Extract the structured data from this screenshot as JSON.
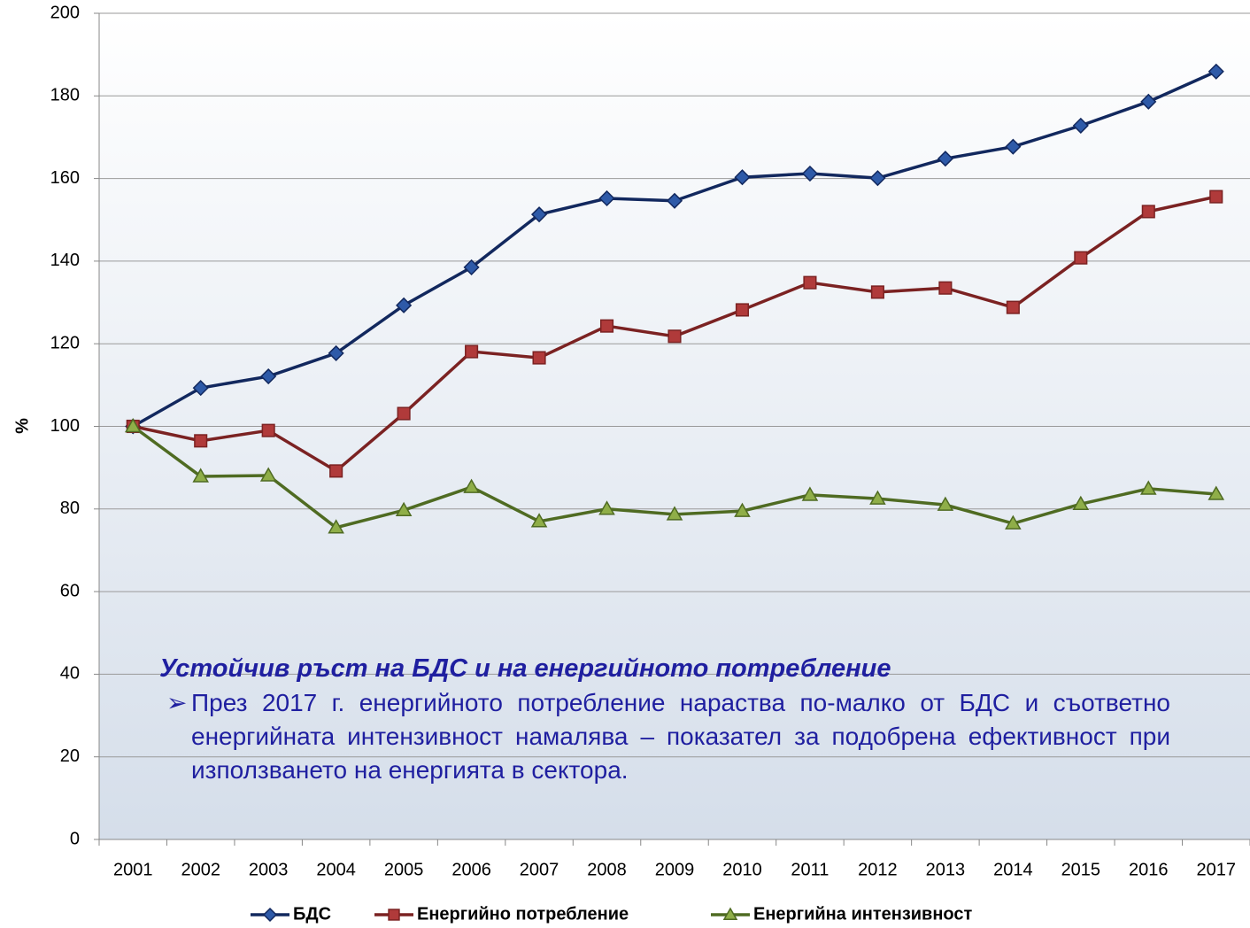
{
  "chart_data": {
    "type": "line",
    "ylabel": "%",
    "categories": [
      "2001",
      "2002",
      "2003",
      "2004",
      "2005",
      "2006",
      "2007",
      "2008",
      "2009",
      "2010",
      "2011",
      "2012",
      "2013",
      "2014",
      "2015",
      "2016",
      "2017"
    ],
    "series": [
      {
        "name": "БДС",
        "color": "#12285e",
        "marker": "diamond",
        "marker_color": "#2e5aa8",
        "values": [
          100,
          109.3,
          112.1,
          117.7,
          129.3,
          138.5,
          151.3,
          155.2,
          154.6,
          160.3,
          161.2,
          160.1,
          164.8,
          167.7,
          172.8,
          178.6,
          185.9
        ]
      },
      {
        "name": "Енергийно потребление",
        "color": "#7b2222",
        "marker": "square",
        "marker_color": "#b03a3a",
        "values": [
          100,
          96.5,
          99.0,
          89.2,
          103.1,
          118.1,
          116.6,
          124.3,
          121.8,
          128.2,
          134.8,
          132.5,
          133.5,
          128.8,
          140.8,
          152.0,
          155.6
        ]
      },
      {
        "name": "Енергийна интензивност",
        "color": "#4f6b22",
        "marker": "triangle",
        "marker_color": "#8fae48",
        "values": [
          100,
          87.9,
          88.1,
          75.5,
          79.7,
          85.3,
          77.0,
          80.0,
          78.7,
          79.5,
          83.4,
          82.5,
          81.0,
          76.5,
          81.2,
          84.9,
          83.6
        ]
      }
    ],
    "ylim": [
      0,
      200
    ],
    "yticks": [
      0,
      20,
      40,
      60,
      80,
      100,
      120,
      140,
      160,
      180,
      200
    ],
    "grid": true,
    "legend": "bottom",
    "annotation": {
      "title": "Устойчив ръст на БДС и на енергийното потребление",
      "text": "През 2017 г. енергийното потребление нараства по-малко от БДС и съответно енергийната интензивност намалява – показател за подобрена ефективност при използването на енергията в сектора."
    }
  }
}
